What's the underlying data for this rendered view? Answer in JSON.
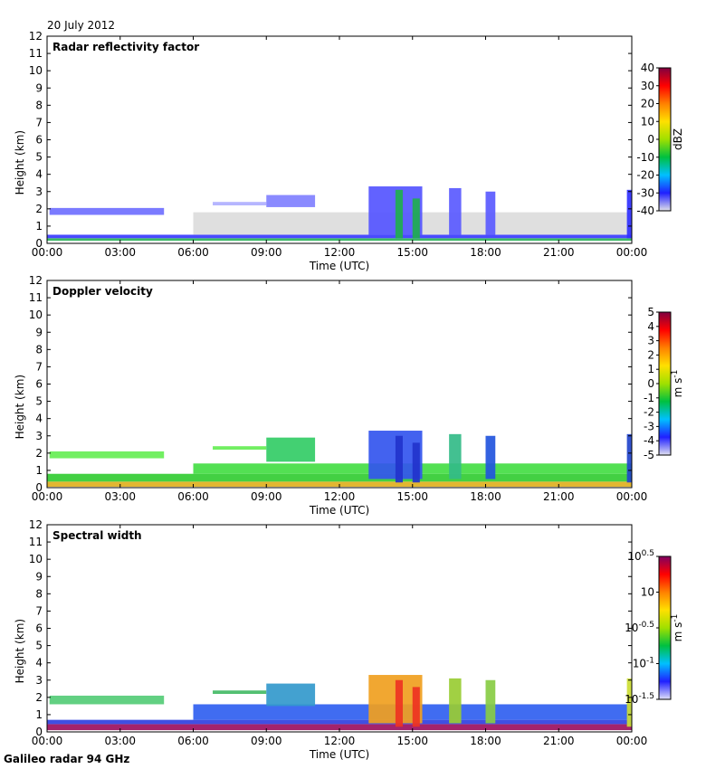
{
  "header": {
    "date": "20 July 2012"
  },
  "footer": {
    "instrument": "Galileo radar 94 GHz"
  },
  "chart_data": [
    {
      "type": "heatmap",
      "title": "Radar reflectivity factor",
      "xlabel": "Time (UTC)",
      "ylabel": "Height (km)",
      "x_ticks": [
        "00:00",
        "03:00",
        "06:00",
        "09:00",
        "12:00",
        "15:00",
        "18:00",
        "21:00",
        "00:00"
      ],
      "y_ticks": [
        "0",
        "1",
        "2",
        "3",
        "4",
        "5",
        "6",
        "7",
        "8",
        "9",
        "10",
        "11",
        "12"
      ],
      "ylim": [
        0,
        12
      ],
      "colorbar": {
        "unit": "dBZ",
        "scale": "linear",
        "range": [
          -40,
          40
        ],
        "ticks": [
          "40",
          "30",
          "20",
          "10",
          "0",
          "-10",
          "-20",
          "-30",
          "-40"
        ],
        "colors": [
          "#e0e0e8",
          "#2020ff",
          "#00c0ff",
          "#00c040",
          "#a0e000",
          "#ffe000",
          "#ff8000",
          "#ff0000",
          "#800040"
        ]
      },
      "features": [
        {
          "t0": 0.0,
          "t1": 24.0,
          "h0": 0.15,
          "h1": 0.3,
          "color": "#2bb35a"
        },
        {
          "t0": 0.0,
          "t1": 24.0,
          "h0": 0.3,
          "h1": 0.5,
          "color": "#3b3bff"
        },
        {
          "t0": 6.0,
          "t1": 24.0,
          "h0": 0.5,
          "h1": 1.8,
          "color": "#dcdcdc"
        },
        {
          "t0": 0.1,
          "t1": 4.8,
          "h0": 1.65,
          "h1": 2.05,
          "color": "#7070ff"
        },
        {
          "t0": 6.8,
          "t1": 9.0,
          "h0": 2.2,
          "h1": 2.4,
          "color": "#b0b0ff"
        },
        {
          "t0": 9.0,
          "t1": 11.0,
          "h0": 2.1,
          "h1": 2.8,
          "color": "#8080ff"
        },
        {
          "t0": 13.2,
          "t1": 15.4,
          "h0": 0.5,
          "h1": 3.3,
          "color": "#5555ff"
        },
        {
          "t0": 14.3,
          "t1": 14.6,
          "h0": 0.3,
          "h1": 3.1,
          "color": "#1fae4f"
        },
        {
          "t0": 15.0,
          "t1": 15.3,
          "h0": 0.3,
          "h1": 2.6,
          "color": "#1fae4f"
        },
        {
          "t0": 16.5,
          "t1": 17.0,
          "h0": 0.5,
          "h1": 3.2,
          "color": "#5a5aff"
        },
        {
          "t0": 18.0,
          "t1": 18.4,
          "h0": 0.5,
          "h1": 3.0,
          "color": "#5a5aff"
        },
        {
          "t0": 23.8,
          "t1": 24.0,
          "h0": 0.3,
          "h1": 3.1,
          "color": "#3030ff"
        }
      ]
    },
    {
      "type": "heatmap",
      "title": "Doppler velocity",
      "xlabel": "Time (UTC)",
      "ylabel": "Height (km)",
      "x_ticks": [
        "00:00",
        "03:00",
        "06:00",
        "09:00",
        "12:00",
        "15:00",
        "18:00",
        "21:00",
        "00:00"
      ],
      "y_ticks": [
        "0",
        "1",
        "2",
        "3",
        "4",
        "5",
        "6",
        "7",
        "8",
        "9",
        "10",
        "11",
        "12"
      ],
      "ylim": [
        0,
        12
      ],
      "colorbar": {
        "unit": "m s-1",
        "unit_base": "m s",
        "unit_sup": "-1",
        "scale": "linear",
        "range": [
          -5,
          5
        ],
        "ticks": [
          "5",
          "4",
          "3",
          "2",
          "1",
          "0",
          "-1",
          "-2",
          "-3",
          "-4",
          "-5"
        ],
        "colors": [
          "#e0e0f0",
          "#2020ff",
          "#00c0ff",
          "#00c040",
          "#a0e000",
          "#ffe000",
          "#ff8000",
          "#ff0000",
          "#800040"
        ]
      },
      "features": [
        {
          "t0": 0.0,
          "t1": 24.0,
          "h0": 0.05,
          "h1": 0.35,
          "color": "#e0b020"
        },
        {
          "t0": 0.0,
          "t1": 24.0,
          "h0": 0.35,
          "h1": 0.8,
          "color": "#33cc33"
        },
        {
          "t0": 6.0,
          "t1": 24.0,
          "h0": 0.8,
          "h1": 1.4,
          "color": "#44dd44"
        },
        {
          "t0": 0.1,
          "t1": 4.8,
          "h0": 1.7,
          "h1": 2.1,
          "color": "#66ee55"
        },
        {
          "t0": 6.8,
          "t1": 9.0,
          "h0": 2.2,
          "h1": 2.4,
          "color": "#66ee55"
        },
        {
          "t0": 9.0,
          "t1": 11.0,
          "h0": 1.5,
          "h1": 2.9,
          "color": "#33cc66"
        },
        {
          "t0": 13.2,
          "t1": 15.4,
          "h0": 0.5,
          "h1": 3.3,
          "color": "#3355ee"
        },
        {
          "t0": 14.3,
          "t1": 14.6,
          "h0": 0.3,
          "h1": 3.0,
          "color": "#2233cc"
        },
        {
          "t0": 15.0,
          "t1": 15.3,
          "h0": 0.3,
          "h1": 2.6,
          "color": "#2233cc"
        },
        {
          "t0": 16.5,
          "t1": 17.0,
          "h0": 0.5,
          "h1": 3.1,
          "color": "#33bb88"
        },
        {
          "t0": 18.0,
          "t1": 18.4,
          "h0": 0.5,
          "h1": 3.0,
          "color": "#2255dd"
        },
        {
          "t0": 23.8,
          "t1": 24.0,
          "h0": 0.3,
          "h1": 3.1,
          "color": "#2244cc"
        }
      ]
    },
    {
      "type": "heatmap",
      "title": "Spectral width",
      "xlabel": "Time (UTC)",
      "ylabel": "Height (km)",
      "x_ticks": [
        "00:00",
        "03:00",
        "06:00",
        "09:00",
        "12:00",
        "15:00",
        "18:00",
        "21:00",
        "00:00"
      ],
      "y_ticks": [
        "0",
        "1",
        "2",
        "3",
        "4",
        "5",
        "6",
        "7",
        "8",
        "9",
        "10",
        "11",
        "12"
      ],
      "ylim": [
        0,
        12
      ],
      "colorbar": {
        "unit": "m s-1",
        "unit_base": "m s",
        "unit_sup": "-1",
        "scale": "log",
        "range": [
          -1.5,
          0.5
        ],
        "ticks": [
          {
            "base": "10",
            "exp": "0.5"
          },
          {
            "base": "10",
            "exp": ""
          },
          {
            "base": "10",
            "exp": "-0.5"
          },
          {
            "base": "10",
            "exp": "-1"
          },
          {
            "base": "10",
            "exp": "-1.5"
          }
        ],
        "tick_values": [
          0.5,
          0,
          -0.5,
          -1,
          -1.5
        ],
        "colors": [
          "#e0e0f8",
          "#2020ff",
          "#00c0ff",
          "#00c040",
          "#a0e000",
          "#ffe000",
          "#ff8000",
          "#ff0000",
          "#800060"
        ]
      },
      "features": [
        {
          "t0": 0.0,
          "t1": 24.0,
          "h0": 0.1,
          "h1": 0.45,
          "color": "#9c1060"
        },
        {
          "t0": 0.0,
          "t1": 24.0,
          "h0": 0.45,
          "h1": 0.7,
          "color": "#3040e0"
        },
        {
          "t0": 6.0,
          "t1": 24.0,
          "h0": 0.7,
          "h1": 1.6,
          "color": "#3060f0"
        },
        {
          "t0": 0.1,
          "t1": 4.8,
          "h0": 1.6,
          "h1": 2.1,
          "color": "#55cc77"
        },
        {
          "t0": 6.8,
          "t1": 9.0,
          "h0": 2.2,
          "h1": 2.4,
          "color": "#44bb66"
        },
        {
          "t0": 9.0,
          "t1": 11.0,
          "h0": 1.5,
          "h1": 2.8,
          "color": "#3399cc"
        },
        {
          "t0": 13.2,
          "t1": 15.4,
          "h0": 0.5,
          "h1": 3.3,
          "color": "#f0a020"
        },
        {
          "t0": 14.3,
          "t1": 14.6,
          "h0": 0.3,
          "h1": 3.0,
          "color": "#ee3322"
        },
        {
          "t0": 15.0,
          "t1": 15.3,
          "h0": 0.3,
          "h1": 2.6,
          "color": "#ee3322"
        },
        {
          "t0": 16.5,
          "t1": 17.0,
          "h0": 0.5,
          "h1": 3.1,
          "color": "#99cc33"
        },
        {
          "t0": 18.0,
          "t1": 18.4,
          "h0": 0.5,
          "h1": 3.0,
          "color": "#88cc44"
        },
        {
          "t0": 23.8,
          "t1": 24.0,
          "h0": 0.3,
          "h1": 3.1,
          "color": "#ccdd33"
        }
      ]
    }
  ]
}
